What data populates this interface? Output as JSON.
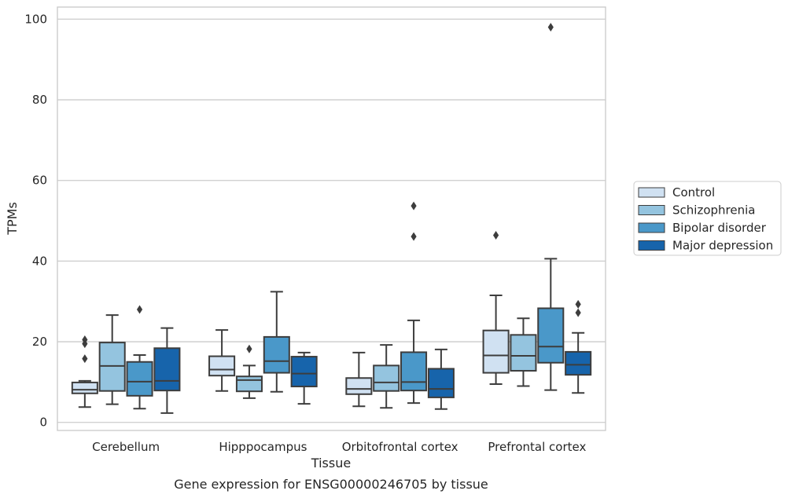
{
  "chart_data": {
    "type": "box",
    "xlabel": "Tissue",
    "ylabel": "TPMs",
    "caption": "Gene expression for ENSG00000246705 by tissue",
    "ylim": [
      -2,
      103
    ],
    "yticks": [
      0,
      20,
      40,
      60,
      80,
      100
    ],
    "grid": true,
    "legend_position": "right",
    "categories": [
      "Cerebellum",
      "Hipppocampus",
      "Orbitofrontal cortex",
      "Prefrontal cortex"
    ],
    "series": [
      {
        "name": "Control",
        "color": "#d0e1f2",
        "boxes": [
          {
            "whislo": 3.8,
            "q1": 7.2,
            "med": 8.1,
            "q3": 9.9,
            "whishi": 10.3,
            "fliers": [
              20.5,
              19.5,
              15.8
            ]
          },
          {
            "whislo": 7.8,
            "q1": 11.6,
            "med": 13.1,
            "q3": 16.4,
            "whishi": 22.9,
            "fliers": []
          },
          {
            "whislo": 4.0,
            "q1": 7.0,
            "med": 8.3,
            "q3": 11.0,
            "whishi": 17.3,
            "fliers": []
          },
          {
            "whislo": 9.5,
            "q1": 12.3,
            "med": 16.6,
            "q3": 22.8,
            "whishi": 31.5,
            "fliers": [
              46.4
            ]
          }
        ]
      },
      {
        "name": "Schizophrenia",
        "color": "#94c4df",
        "boxes": [
          {
            "whislo": 4.5,
            "q1": 7.8,
            "med": 14.0,
            "q3": 19.8,
            "whishi": 26.6,
            "fliers": []
          },
          {
            "whislo": 6.0,
            "q1": 7.7,
            "med": 10.5,
            "q3": 11.4,
            "whishi": 14.1,
            "fliers": [
              18.2
            ]
          },
          {
            "whislo": 3.6,
            "q1": 7.8,
            "med": 9.9,
            "q3": 14.1,
            "whishi": 19.2,
            "fliers": []
          },
          {
            "whislo": 9.0,
            "q1": 12.8,
            "med": 16.5,
            "q3": 21.7,
            "whishi": 25.8,
            "fliers": []
          }
        ]
      },
      {
        "name": "Bipolar disorder",
        "color": "#4a98c9",
        "boxes": [
          {
            "whislo": 3.4,
            "q1": 6.6,
            "med": 10.1,
            "q3": 15.0,
            "whishi": 16.7,
            "fliers": [
              28.0
            ]
          },
          {
            "whislo": 7.6,
            "q1": 12.3,
            "med": 15.2,
            "q3": 21.2,
            "whishi": 32.4,
            "fliers": []
          },
          {
            "whislo": 4.8,
            "q1": 7.9,
            "med": 10.0,
            "q3": 17.4,
            "whishi": 25.3,
            "fliers": [
              53.7,
              46.1
            ]
          },
          {
            "whislo": 8.0,
            "q1": 14.8,
            "med": 18.8,
            "q3": 28.3,
            "whishi": 40.6,
            "fliers": [
              98.0
            ]
          }
        ]
      },
      {
        "name": "Major depression",
        "color": "#1764ab",
        "boxes": [
          {
            "whislo": 2.3,
            "q1": 7.9,
            "med": 10.3,
            "q3": 18.4,
            "whishi": 23.4,
            "fliers": []
          },
          {
            "whislo": 4.6,
            "q1": 8.9,
            "med": 12.1,
            "q3": 16.3,
            "whishi": 17.3,
            "fliers": []
          },
          {
            "whislo": 3.3,
            "q1": 6.2,
            "med": 8.3,
            "q3": 13.3,
            "whishi": 18.1,
            "fliers": []
          },
          {
            "whislo": 7.3,
            "q1": 11.8,
            "med": 14.3,
            "q3": 17.5,
            "whishi": 22.2,
            "fliers": [
              29.3,
              27.2
            ]
          }
        ]
      }
    ],
    "colors": {
      "grid": "#cccccc",
      "frame": "#cccccc",
      "edge": "#3d3d3d",
      "text": "#262626"
    }
  }
}
